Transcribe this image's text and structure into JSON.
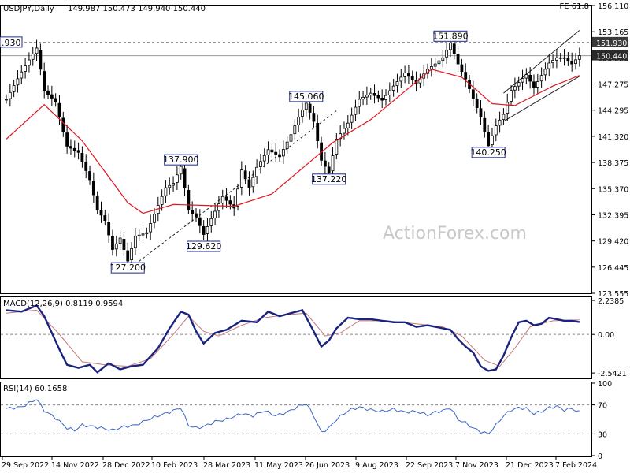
{
  "chart_data": {
    "type": "candlestick",
    "symbol_label": "USDJPY,Daily",
    "ohlc_readout": "149.987 150.473 149.940 150.440",
    "corner_label": "FE 61.8",
    "watermark": "ActionForex.com",
    "x_tick_labels": [
      "29 Sep 2022",
      "14 Nov 2022",
      "28 Dec 2022",
      "10 Feb 2023",
      "28 Mar 2023",
      "11 May 2023",
      "26 Jun 2023",
      "9 Aug 2023",
      "22 Sep 2023",
      "7 Nov 2023",
      "21 Dec 2023",
      "7 Feb 2024"
    ],
    "price_axis": {
      "range": [
        123.555,
        156.11
      ],
      "ticks": [
        "156.110",
        "153.165",
        "150.220",
        "147.275",
        "144.295",
        "141.320",
        "138.375",
        "135.370",
        "132.395",
        "129.420",
        "126.445",
        "123.555"
      ]
    },
    "price_path": [
      [
        0,
        145.5
      ],
      [
        4,
        148.6
      ],
      [
        8,
        151.3
      ],
      [
        10,
        146.5
      ],
      [
        13,
        145.2
      ],
      [
        16,
        140.2
      ],
      [
        19,
        139.5
      ],
      [
        22,
        136.4
      ],
      [
        24,
        133.0
      ],
      [
        26,
        131.8
      ],
      [
        28,
        128.5
      ],
      [
        30,
        129.8
      ],
      [
        32,
        127.2
      ],
      [
        34,
        130.0
      ],
      [
        37,
        130.4
      ],
      [
        39,
        132.5
      ],
      [
        42,
        135.5
      ],
      [
        44,
        136.0
      ],
      [
        46,
        137.9
      ],
      [
        48,
        133.0
      ],
      [
        50,
        132.2
      ],
      [
        52,
        130.2
      ],
      [
        54,
        132.0
      ],
      [
        57,
        134.5
      ],
      [
        60,
        133.2
      ],
      [
        62,
        137.5
      ],
      [
        64,
        135.5
      ],
      [
        66,
        137.8
      ],
      [
        69,
        139.8
      ],
      [
        72,
        139.0
      ],
      [
        75,
        141.5
      ],
      [
        77,
        143.5
      ],
      [
        79,
        145.06
      ],
      [
        81,
        143.0
      ],
      [
        83,
        138.6
      ],
      [
        85,
        137.22
      ],
      [
        87,
        141.0
      ],
      [
        90,
        142.8
      ],
      [
        93,
        145.5
      ],
      [
        96,
        146.2
      ],
      [
        99,
        145.4
      ],
      [
        102,
        147.0
      ],
      [
        105,
        148.5
      ],
      [
        108,
        147.3
      ],
      [
        111,
        148.9
      ],
      [
        113,
        149.5
      ],
      [
        115,
        150.2
      ],
      [
        117,
        151.89
      ],
      [
        119,
        149.5
      ],
      [
        121,
        147.8
      ],
      [
        123,
        145.6
      ],
      [
        125,
        143.5
      ],
      [
        127,
        140.25
      ],
      [
        129,
        142.5
      ],
      [
        131,
        143.8
      ],
      [
        133,
        146.5
      ],
      [
        135,
        147.4
      ],
      [
        137,
        148.3
      ],
      [
        139,
        146.8
      ],
      [
        141,
        148.2
      ],
      [
        143,
        149.6
      ],
      [
        145,
        150.2
      ],
      [
        147,
        150.2
      ],
      [
        149,
        149.5
      ],
      [
        151,
        150.44
      ]
    ],
    "moving_average": [
      [
        0,
        141.0
      ],
      [
        10,
        144.9
      ],
      [
        20,
        140.8
      ],
      [
        32,
        133.8
      ],
      [
        36,
        132.6
      ],
      [
        44,
        133.6
      ],
      [
        60,
        133.4
      ],
      [
        70,
        134.8
      ],
      [
        86,
        140.6
      ],
      [
        96,
        143.2
      ],
      [
        112,
        148.9
      ],
      [
        120,
        148.0
      ],
      [
        128,
        145.0
      ],
      [
        134,
        144.8
      ],
      [
        144,
        147.0
      ],
      [
        151,
        148.2
      ]
    ],
    "channel_lines": [
      {
        "from": [
          32,
          126.2
        ],
        "to": [
          87,
          144.2
        ]
      },
      {
        "from": [
          131,
          146.2
        ],
        "to": [
          151,
          153.3
        ]
      },
      {
        "from": [
          131,
          143.0
        ],
        "to": [
          151,
          148.1
        ]
      }
    ],
    "horizontal_levels": [
      151.93,
      150.44
    ],
    "price_labels": [
      "151.930",
      "150.440"
    ],
    "left_edge_label": ".930",
    "annotations": [
      {
        "text": "151.890",
        "x": 117,
        "y": 151.89
      },
      {
        "text": "145.060",
        "x": 79,
        "y": 145.06
      },
      {
        "text": "137.900",
        "x": 46,
        "y": 137.9
      },
      {
        "text": "137.220",
        "x": 85,
        "y": 137.22
      },
      {
        "text": "140.250",
        "x": 127,
        "y": 140.25
      },
      {
        "text": "129.620",
        "x": 52,
        "y": 129.62
      },
      {
        "text": "127.200",
        "x": 32,
        "y": 127.2
      }
    ],
    "macd": {
      "label": "MACD(12,26,9) 0.8119 0.9594",
      "range": [
        -2.95,
        2.45
      ],
      "ticks": [
        "2.2385",
        "0.00",
        "-2.5421"
      ],
      "zero_line": 0,
      "macd_line": [
        [
          0,
          1.6
        ],
        [
          4,
          1.5
        ],
        [
          8,
          1.9
        ],
        [
          10,
          1.2
        ],
        [
          14,
          -1.0
        ],
        [
          16,
          -2.0
        ],
        [
          19,
          -2.2
        ],
        [
          22,
          -2.0
        ],
        [
          24,
          -2.5
        ],
        [
          27,
          -1.9
        ],
        [
          30,
          -2.3
        ],
        [
          33,
          -2.1
        ],
        [
          36,
          -2.0
        ],
        [
          40,
          -0.9
        ],
        [
          43,
          0.4
        ],
        [
          46,
          1.5
        ],
        [
          48,
          1.3
        ],
        [
          50,
          0.2
        ],
        [
          52,
          -0.6
        ],
        [
          55,
          0.1
        ],
        [
          58,
          0.3
        ],
        [
          62,
          0.9
        ],
        [
          66,
          0.8
        ],
        [
          69,
          1.5
        ],
        [
          72,
          1.2
        ],
        [
          75,
          1.4
        ],
        [
          78,
          1.6
        ],
        [
          81,
          0.2
        ],
        [
          83,
          -0.8
        ],
        [
          85,
          -0.4
        ],
        [
          87,
          0.4
        ],
        [
          90,
          1.1
        ],
        [
          93,
          1.0
        ],
        [
          96,
          1.0
        ],
        [
          99,
          0.9
        ],
        [
          102,
          0.8
        ],
        [
          105,
          0.8
        ],
        [
          108,
          0.5
        ],
        [
          111,
          0.6
        ],
        [
          113,
          0.5
        ],
        [
          115,
          0.4
        ],
        [
          117,
          0.3
        ],
        [
          119,
          -0.3
        ],
        [
          121,
          -0.8
        ],
        [
          123,
          -1.2
        ],
        [
          125,
          -2.1
        ],
        [
          127,
          -2.4
        ],
        [
          129,
          -2.3
        ],
        [
          131,
          -1.4
        ],
        [
          133,
          -0.2
        ],
        [
          135,
          0.8
        ],
        [
          137,
          0.9
        ],
        [
          139,
          0.6
        ],
        [
          141,
          0.7
        ],
        [
          143,
          1.1
        ],
        [
          145,
          1.0
        ],
        [
          147,
          0.9
        ],
        [
          149,
          0.9
        ],
        [
          151,
          0.81
        ]
      ],
      "signal_line": [
        [
          0,
          1.4
        ],
        [
          8,
          1.6
        ],
        [
          14,
          0.0
        ],
        [
          20,
          -1.8
        ],
        [
          26,
          -2.0
        ],
        [
          32,
          -2.1
        ],
        [
          38,
          -1.6
        ],
        [
          44,
          0.0
        ],
        [
          48,
          1.2
        ],
        [
          52,
          0.2
        ],
        [
          56,
          -0.1
        ],
        [
          62,
          0.6
        ],
        [
          68,
          1.1
        ],
        [
          74,
          1.3
        ],
        [
          79,
          1.4
        ],
        [
          84,
          -0.1
        ],
        [
          88,
          0.1
        ],
        [
          93,
          0.9
        ],
        [
          100,
          0.9
        ],
        [
          108,
          0.7
        ],
        [
          115,
          0.5
        ],
        [
          120,
          -0.1
        ],
        [
          126,
          -1.7
        ],
        [
          130,
          -2.1
        ],
        [
          134,
          -0.9
        ],
        [
          138,
          0.5
        ],
        [
          144,
          0.9
        ],
        [
          151,
          0.96
        ]
      ]
    },
    "rsi": {
      "label": "RSI(14) 60.1658",
      "range": [
        0,
        100
      ],
      "ticks": [
        "100",
        "70",
        "30",
        "0"
      ],
      "levels": [
        70,
        30
      ],
      "series": [
        [
          0,
          65
        ],
        [
          4,
          67
        ],
        [
          8,
          78
        ],
        [
          10,
          62
        ],
        [
          13,
          52
        ],
        [
          16,
          38
        ],
        [
          18,
          35
        ],
        [
          20,
          42
        ],
        [
          23,
          40
        ],
        [
          25,
          38
        ],
        [
          28,
          35
        ],
        [
          31,
          40
        ],
        [
          34,
          42
        ],
        [
          37,
          49
        ],
        [
          40,
          55
        ],
        [
          43,
          60
        ],
        [
          46,
          66
        ],
        [
          48,
          42
        ],
        [
          50,
          38
        ],
        [
          52,
          40
        ],
        [
          55,
          47
        ],
        [
          58,
          50
        ],
        [
          62,
          58
        ],
        [
          65,
          55
        ],
        [
          68,
          62
        ],
        [
          71,
          55
        ],
        [
          74,
          60
        ],
        [
          77,
          68
        ],
        [
          79,
          72
        ],
        [
          81,
          55
        ],
        [
          83,
          32
        ],
        [
          85,
          38
        ],
        [
          87,
          50
        ],
        [
          90,
          62
        ],
        [
          93,
          67
        ],
        [
          96,
          63
        ],
        [
          99,
          61
        ],
        [
          102,
          64
        ],
        [
          105,
          60
        ],
        [
          108,
          61
        ],
        [
          111,
          56
        ],
        [
          113,
          60
        ],
        [
          115,
          62
        ],
        [
          117,
          66
        ],
        [
          119,
          50
        ],
        [
          121,
          45
        ],
        [
          123,
          38
        ],
        [
          125,
          33
        ],
        [
          127,
          30
        ],
        [
          129,
          42
        ],
        [
          131,
          55
        ],
        [
          133,
          63
        ],
        [
          135,
          66
        ],
        [
          137,
          65
        ],
        [
          139,
          58
        ],
        [
          141,
          61
        ],
        [
          143,
          66
        ],
        [
          145,
          68
        ],
        [
          147,
          63
        ],
        [
          149,
          65
        ],
        [
          151,
          60
        ]
      ]
    },
    "colors": {
      "background": "#ffffff",
      "candle": "#000000",
      "moving_average": "#e0141c",
      "macd_line": "#1a237e",
      "signal_line": "#c77979",
      "rsi_line": "#3c64c8",
      "level_lines": "#7f7f7f",
      "annotation_border": "#1a2a8c"
    }
  }
}
